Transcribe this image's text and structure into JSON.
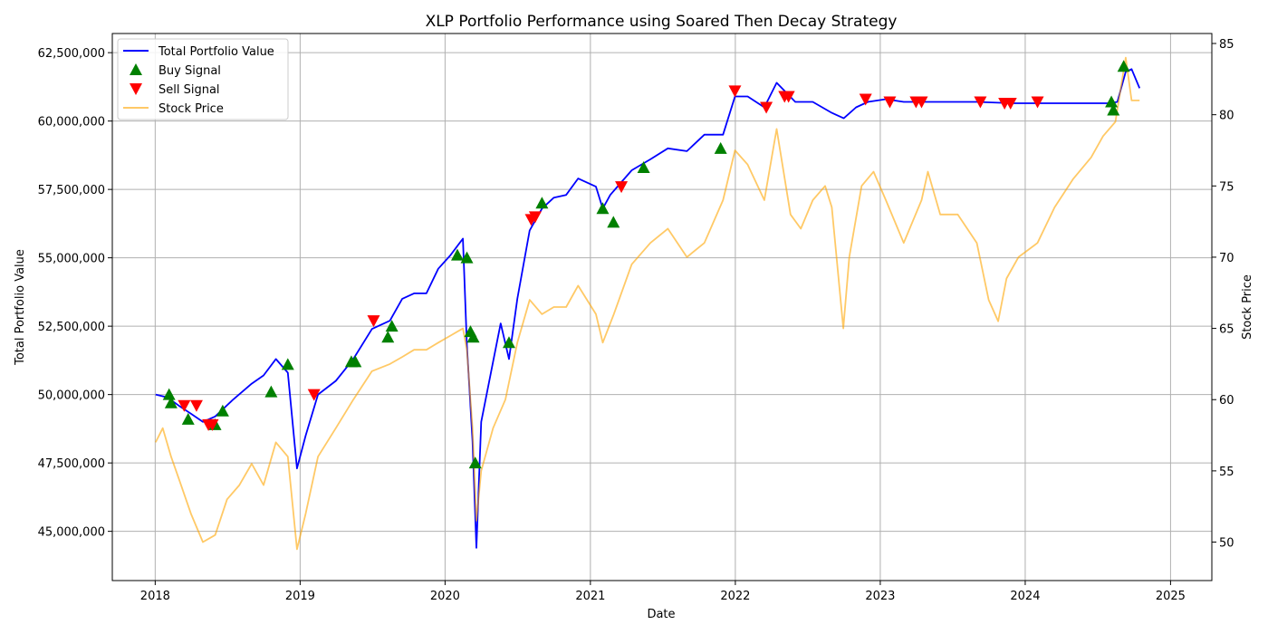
{
  "chart_data": {
    "type": "line",
    "title": "XLP Portfolio Performance using Soared Then Decay Strategy",
    "xlabel": "Date",
    "ylabel": "Total Portfolio Value",
    "ylabel_right": "Stock Price",
    "grid": true,
    "legend_position": "top-left",
    "xlim": [
      "2017-09-15",
      "2025-04-15"
    ],
    "ylim": [
      43200000,
      63200000
    ],
    "ylim_right": [
      47.3,
      85.7
    ],
    "x_ticks": [
      "2018",
      "2019",
      "2020",
      "2021",
      "2022",
      "2023",
      "2024",
      "2025"
    ],
    "x_tick_dates": [
      "2018-01-01",
      "2019-01-01",
      "2020-01-01",
      "2021-01-01",
      "2022-01-01",
      "2023-01-01",
      "2024-01-01",
      "2025-01-01"
    ],
    "y_ticks": [
      "45,000,000",
      "47,500,000",
      "50,000,000",
      "52,500,000",
      "55,000,000",
      "57,500,000",
      "60,000,000",
      "62,500,000"
    ],
    "y_tick_values": [
      45000000,
      47500000,
      50000000,
      52500000,
      55000000,
      57500000,
      60000000,
      62500000
    ],
    "y_right_ticks": [
      "50",
      "55",
      "60",
      "65",
      "70",
      "75",
      "80",
      "85"
    ],
    "y_right_tick_values": [
      50,
      55,
      60,
      65,
      70,
      75,
      80,
      85
    ],
    "legend": [
      {
        "label": "Total Portfolio Value",
        "kind": "line",
        "color": "#0000ff"
      },
      {
        "label": "Buy Signal",
        "kind": "marker-up",
        "color": "#008000"
      },
      {
        "label": "Sell Signal",
        "kind": "marker-down",
        "color": "#ff0000"
      },
      {
        "label": "Stock Price",
        "kind": "line",
        "color": "#ffa500"
      }
    ],
    "series": [
      {
        "name": "Total Portfolio Value",
        "axis": "left",
        "color": "#0000ff",
        "x": [
          "2018-01-02",
          "2018-02-01",
          "2018-03-01",
          "2018-04-01",
          "2018-05-01",
          "2018-06-01",
          "2018-07-15",
          "2018-09-01",
          "2018-10-01",
          "2018-11-01",
          "2018-12-01",
          "2018-12-24",
          "2019-01-15",
          "2019-02-15",
          "2019-04-01",
          "2019-05-15",
          "2019-07-01",
          "2019-08-15",
          "2019-09-15",
          "2019-10-15",
          "2019-11-15",
          "2019-12-15",
          "2020-01-15",
          "2020-02-15",
          "2020-02-25",
          "2020-03-10",
          "2020-03-20",
          "2020-04-01",
          "2020-05-01",
          "2020-05-20",
          "2020-06-10",
          "2020-07-01",
          "2020-08-01",
          "2020-09-01",
          "2020-10-01",
          "2020-11-01",
          "2020-12-01",
          "2021-01-15",
          "2021-02-01",
          "2021-02-20",
          "2021-03-10",
          "2021-04-15",
          "2021-06-01",
          "2021-07-15",
          "2021-09-01",
          "2021-10-15",
          "2021-12-01",
          "2021-12-31",
          "2022-02-01",
          "2022-03-15",
          "2022-04-15",
          "2022-06-01",
          "2022-07-15",
          "2022-09-01",
          "2022-10-01",
          "2022-11-01",
          "2022-12-01",
          "2023-01-15",
          "2023-03-01",
          "2023-06-01",
          "2023-09-01",
          "2023-12-01",
          "2024-03-01",
          "2024-06-01",
          "2024-08-01",
          "2024-08-20",
          "2024-09-10",
          "2024-09-25",
          "2024-10-15"
        ],
        "values": [
          50000000,
          49900000,
          49600000,
          49300000,
          49000000,
          49200000,
          49800000,
          50400000,
          50700000,
          51300000,
          50800000,
          47300000,
          48500000,
          50000000,
          50500000,
          51300000,
          52400000,
          52700000,
          53500000,
          53700000,
          53700000,
          54600000,
          55100000,
          55700000,
          51800000,
          48300000,
          44400000,
          49000000,
          51200000,
          52600000,
          51300000,
          53500000,
          56000000,
          56800000,
          57200000,
          57300000,
          57900000,
          57600000,
          56800000,
          57300000,
          57600000,
          58200000,
          58600000,
          59000000,
          58900000,
          59500000,
          59500000,
          60900000,
          60900000,
          60500000,
          61400000,
          60700000,
          60700000,
          60300000,
          60100000,
          60500000,
          60700000,
          60800000,
          60700000,
          60700000,
          60700000,
          60650000,
          60650000,
          60650000,
          60650000,
          60700000,
          61800000,
          61900000,
          61200000
        ]
      },
      {
        "name": "Stock Price",
        "axis": "right",
        "color": "#ffa500",
        "x": [
          "2018-01-02",
          "2018-01-20",
          "2018-02-10",
          "2018-03-01",
          "2018-04-01",
          "2018-05-01",
          "2018-06-01",
          "2018-07-01",
          "2018-08-01",
          "2018-09-01",
          "2018-10-01",
          "2018-11-01",
          "2018-12-01",
          "2018-12-24",
          "2019-01-15",
          "2019-02-15",
          "2019-04-01",
          "2019-05-15",
          "2019-07-01",
          "2019-08-15",
          "2019-09-15",
          "2019-10-15",
          "2019-11-15",
          "2019-12-15",
          "2020-01-15",
          "2020-02-15",
          "2020-02-25",
          "2020-03-10",
          "2020-03-20",
          "2020-04-01",
          "2020-05-01",
          "2020-06-01",
          "2020-07-01",
          "2020-08-01",
          "2020-09-01",
          "2020-10-01",
          "2020-11-01",
          "2020-12-01",
          "2021-01-15",
          "2021-02-01",
          "2021-03-01",
          "2021-04-15",
          "2021-06-01",
          "2021-07-15",
          "2021-09-01",
          "2021-10-15",
          "2021-12-01",
          "2021-12-31",
          "2022-02-01",
          "2022-03-15",
          "2022-04-15",
          "2022-05-20",
          "2022-06-15",
          "2022-07-15",
          "2022-08-15",
          "2022-09-01",
          "2022-09-30",
          "2022-10-15",
          "2022-11-15",
          "2022-12-15",
          "2023-01-15",
          "2023-03-01",
          "2023-04-15",
          "2023-05-01",
          "2023-06-01",
          "2023-07-15",
          "2023-09-01",
          "2023-10-01",
          "2023-10-25",
          "2023-11-15",
          "2023-12-15",
          "2024-02-01",
          "2024-03-15",
          "2024-05-01",
          "2024-06-15",
          "2024-07-15",
          "2024-08-15",
          "2024-09-10",
          "2024-09-25",
          "2024-10-15"
        ],
        "values": [
          57,
          58,
          56,
          54.5,
          52,
          50,
          50.5,
          53,
          54,
          55.5,
          54,
          57,
          56,
          49.5,
          52,
          56,
          58,
          60,
          62,
          62.5,
          63,
          63.5,
          63.5,
          64,
          64.5,
          65,
          63.5,
          58,
          51.5,
          55,
          58,
          60,
          64,
          67,
          66,
          66.5,
          66.5,
          68,
          66,
          64,
          66,
          69.5,
          71,
          72,
          70,
          71,
          74,
          77.5,
          76.5,
          74,
          79,
          73,
          72,
          74,
          75,
          73.5,
          65,
          70,
          75,
          76,
          74,
          71,
          74,
          76,
          73,
          73,
          71,
          67,
          65.5,
          68.5,
          70,
          71,
          73.5,
          75.5,
          77,
          78.5,
          79.5,
          84,
          81,
          81
        ]
      }
    ],
    "buy_signals": {
      "name": "Buy Signal",
      "color": "#008000",
      "x": [
        "2018-02-05",
        "2018-02-10",
        "2018-03-25",
        "2018-06-01",
        "2018-06-20",
        "2018-10-20",
        "2018-12-01",
        "2019-05-10",
        "2019-05-20",
        "2019-08-10",
        "2019-08-20",
        "2020-02-01",
        "2020-02-25",
        "2020-03-05",
        "2020-03-12",
        "2020-03-17",
        "2020-06-10",
        "2020-09-01",
        "2021-02-01",
        "2021-02-28",
        "2021-05-15",
        "2021-11-25",
        "2024-08-05",
        "2024-08-10",
        "2024-09-05"
      ],
      "values": [
        50000000,
        49700000,
        49100000,
        48900000,
        49400000,
        50100000,
        51100000,
        51200000,
        51200000,
        52100000,
        52500000,
        55100000,
        55000000,
        52300000,
        52100000,
        47500000,
        51900000,
        57000000,
        56800000,
        56300000,
        58300000,
        59000000,
        60700000,
        60400000,
        62000000
      ]
    },
    "sell_signals": {
      "name": "Sell Signal",
      "color": "#ff0000",
      "x": [
        "2018-03-15",
        "2018-04-15",
        "2018-05-15",
        "2018-05-25",
        "2019-02-05",
        "2019-07-05",
        "2020-08-05",
        "2020-08-15",
        "2021-03-20",
        "2021-12-31",
        "2022-03-20",
        "2022-05-05",
        "2022-05-15",
        "2022-11-25",
        "2023-01-25",
        "2023-04-01",
        "2023-04-15",
        "2023-09-10",
        "2023-11-10",
        "2023-11-25",
        "2024-02-01"
      ],
      "values": [
        49600000,
        49600000,
        48900000,
        48900000,
        50000000,
        52700000,
        56400000,
        56500000,
        57600000,
        61100000,
        60500000,
        60900000,
        60900000,
        60800000,
        60700000,
        60700000,
        60700000,
        60700000,
        60650000,
        60650000,
        60700000
      ]
    }
  }
}
